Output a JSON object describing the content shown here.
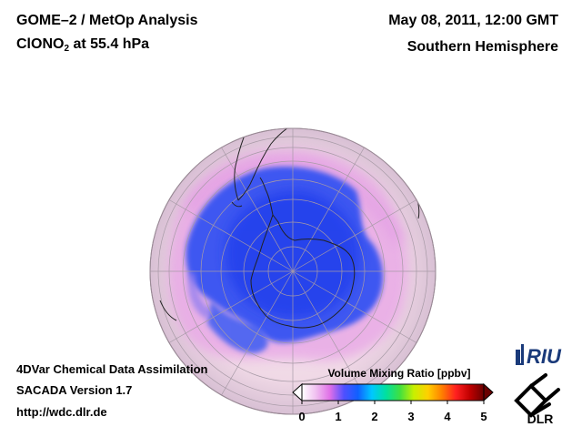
{
  "header": {
    "title_line1": "GOME–2 / MetOp Analysis",
    "title_line2_prefix": "ClONO",
    "title_line2_sub": "2",
    "title_line2_suffix": " at 55.4 hPa",
    "datetime": "May 08, 2011, 12:00 GMT",
    "hemisphere": "Southern Hemisphere"
  },
  "footer": {
    "line1": "4DVar Chemical Data Assimilation",
    "line2": "SACADA Version 1.7",
    "line3": "http://wdc.dlr.de"
  },
  "colorbar": {
    "label": "Volume Mixing Ratio [ppbv]",
    "ticks": [
      "0",
      "1",
      "2",
      "3",
      "4",
      "5"
    ],
    "colors": [
      "#ffffff",
      "#f0c0f0",
      "#e070e8",
      "#5050ff",
      "#1060ff",
      "#00c8ff",
      "#00e0a0",
      "#40e040",
      "#c8f000",
      "#ffd000",
      "#ff8000",
      "#ff2020",
      "#c00000",
      "#6a0000"
    ]
  },
  "logos": {
    "riu": "RIU",
    "dlr": "DLR"
  },
  "map": {
    "projection": "orthographic",
    "center": "South Pole",
    "field": "ClONO2 volume mixing ratio",
    "background_color": "#f0dce8",
    "low_color": "#2a50f0"
  }
}
